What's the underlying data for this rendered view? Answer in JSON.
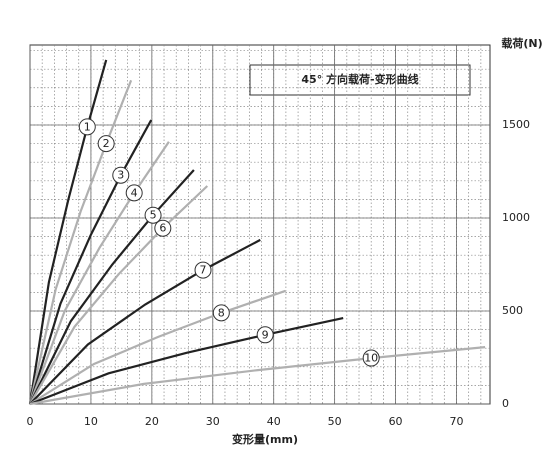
{
  "chart_data": {
    "type": "line",
    "title": "45° 方向载荷-变形曲线",
    "x_label": "变形量(mm)",
    "y_label": "载荷(N)",
    "xlim": [
      0,
      75.5
    ],
    "xticks": [
      0,
      10,
      20,
      30,
      40,
      50,
      60,
      70
    ],
    "ylim": [
      0,
      1930
    ],
    "yticks": [
      0,
      500,
      1000,
      1500
    ],
    "grid": true,
    "series": [
      {
        "name": "1",
        "color": "#222222",
        "x": [
          0,
          3.1,
          6.3,
          9.4,
          12.5
        ],
        "values": [
          0,
          655,
          1100,
          1490,
          1850
        ]
      },
      {
        "name": "2",
        "color": "#b0b0b0",
        "x": [
          0,
          4.2,
          8.3,
          12.5,
          16.6
        ],
        "values": [
          0,
          615,
          1035,
          1400,
          1740
        ]
      },
      {
        "name": "3",
        "color": "#222222",
        "x": [
          0,
          5,
          10,
          14.9,
          19.9
        ],
        "values": [
          0,
          540,
          910,
          1230,
          1527
        ]
      },
      {
        "name": "4",
        "color": "#b0b0b0",
        "x": [
          0,
          5.7,
          11.4,
          17.1,
          22.8
        ],
        "values": [
          0,
          500,
          840,
          1135,
          1410
        ]
      },
      {
        "name": "5",
        "color": "#222222",
        "x": [
          0,
          6.7,
          13.5,
          20.2,
          26.9
        ],
        "values": [
          0,
          445,
          750,
          1015,
          1258
        ]
      },
      {
        "name": "6",
        "color": "#b0b0b0",
        "x": [
          0,
          7.3,
          14.6,
          21.8,
          29.1
        ],
        "values": [
          0,
          415,
          700,
          945,
          1172
        ]
      },
      {
        "name": "7",
        "color": "#222222",
        "x": [
          0,
          9.5,
          18.9,
          28.4,
          37.8
        ],
        "values": [
          0,
          320,
          535,
          720,
          882
        ]
      },
      {
        "name": "8",
        "color": "#b0b0b0",
        "x": [
          0,
          10.5,
          21,
          31.4,
          41.9
        ],
        "values": [
          0,
          215,
          360,
          490,
          608
        ]
      },
      {
        "name": "9",
        "color": "#222222",
        "x": [
          0,
          12.9,
          25.7,
          38.6,
          51.4
        ],
        "values": [
          0,
          165,
          275,
          372,
          462
        ]
      },
      {
        "name": "10",
        "color": "#b0b0b0",
        "x": [
          0,
          18.7,
          37.4,
          56,
          74.7
        ],
        "values": [
          0,
          108,
          182,
          247,
          306
        ]
      }
    ]
  }
}
